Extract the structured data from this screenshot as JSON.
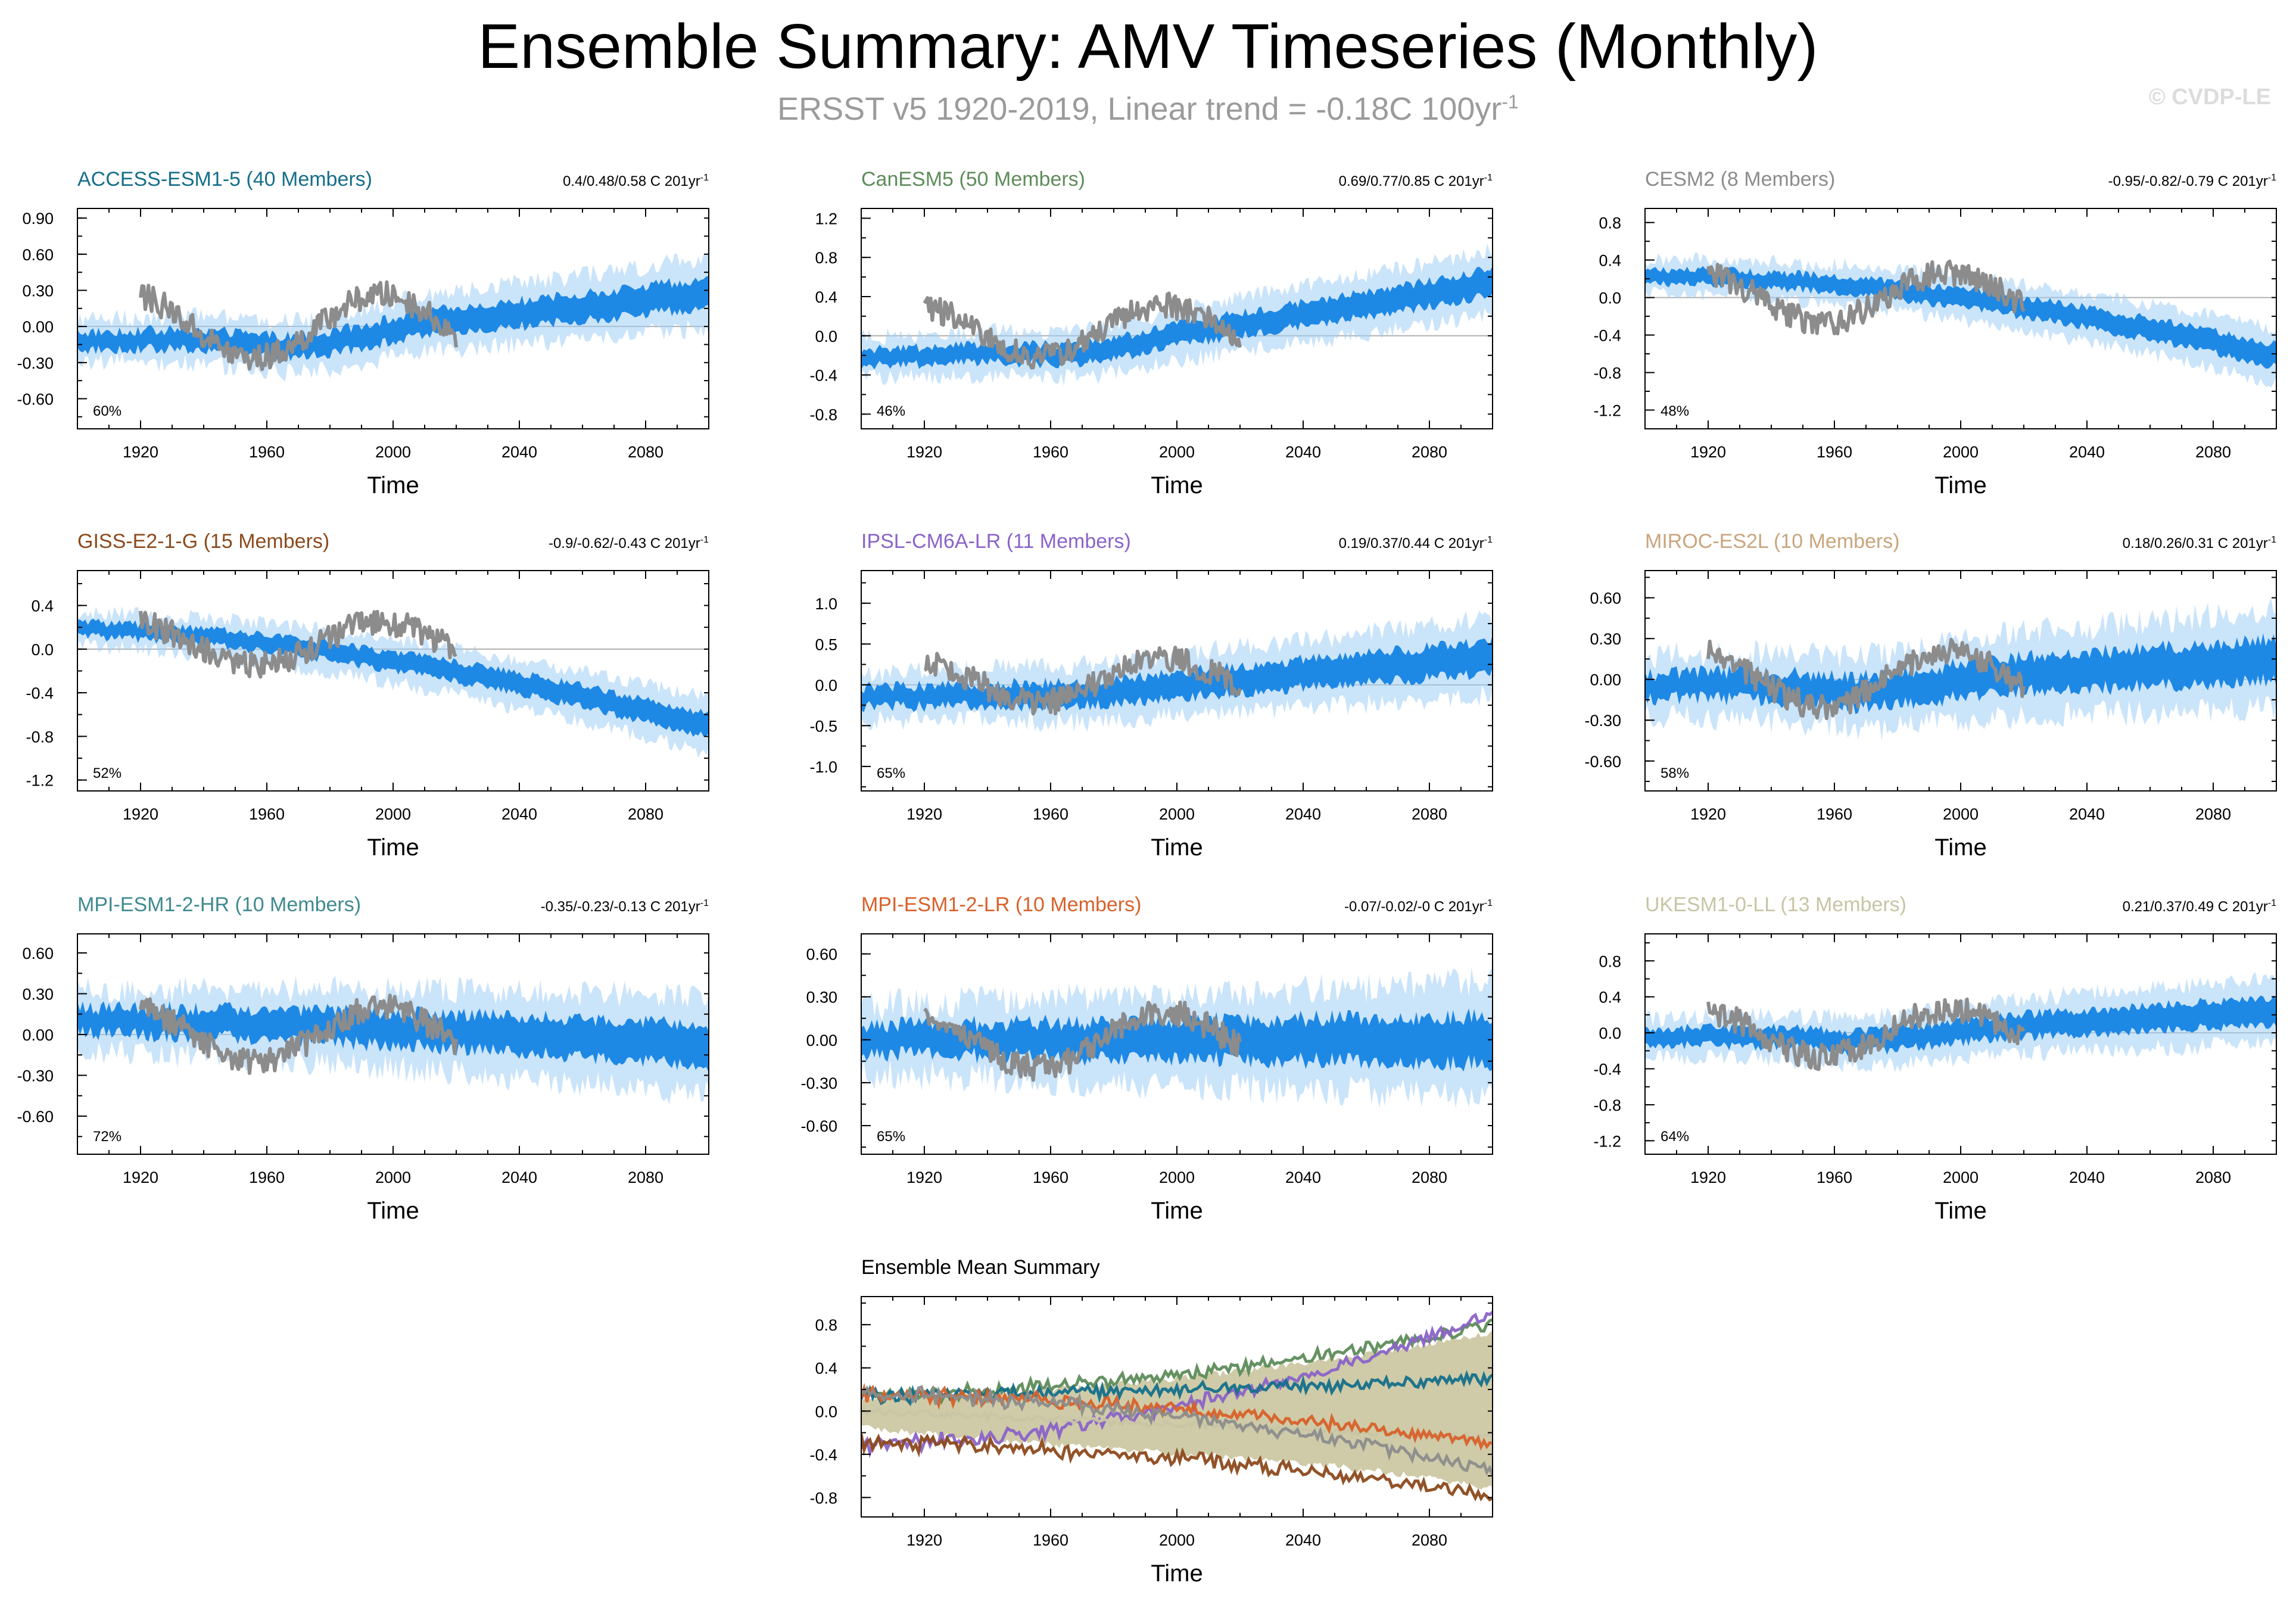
{
  "figure": {
    "title": "Ensemble Summary: AMV Timeseries (Monthly)",
    "subtitle_main": "ERSST v5 1920-2019, Linear trend = -0.18C 100yr",
    "subtitle_sup": "-1",
    "credit": "© CVDP-LE",
    "colors": {
      "ensemble": "#1e88e5",
      "observations": "#8c8c8c",
      "zero_line": "#b0b0b0"
    }
  },
  "chart_data": [
    {
      "type": "line",
      "model": "ACCESS-ESM1-5 (40 Members)",
      "color": "#156f8a",
      "trend": "0.4/0.48/0.58 C 201yr",
      "trend_sup": "-1",
      "pct": "60%",
      "xlabel": "Time",
      "xticks": [
        "1920",
        "1960",
        "2000",
        "2040",
        "2080"
      ],
      "xlim": [
        1900,
        2100
      ],
      "yticks": [
        "0.90",
        "0.60",
        "0.30",
        "0.00",
        "-0.30",
        "-0.60"
      ],
      "ytick_values": [
        0.9,
        0.6,
        0.3,
        0,
        -0.3,
        -0.6
      ],
      "ylim": [
        -0.85,
        0.98
      ],
      "mean_start": -0.12,
      "mean_end": 0.28,
      "spread": 0.16,
      "dip": -0.12,
      "mid_offset": 0.0,
      "obs_level": 0.0
    },
    {
      "type": "line",
      "model": "CanESM5 (50 Members)",
      "color": "#5e8c5a",
      "trend": "0.69/0.77/0.85 C 201yr",
      "trend_sup": "-1",
      "pct": "46%",
      "xlabel": "Time",
      "xticks": [
        "1920",
        "1960",
        "2000",
        "2040",
        "2080"
      ],
      "xlim": [
        1900,
        2100
      ],
      "yticks": [
        "1.2",
        "0.8",
        "0.4",
        "0.0",
        "-0.4",
        "-0.8"
      ],
      "ytick_values": [
        1.2,
        0.8,
        0.4,
        0,
        -0.4,
        -0.8
      ],
      "ylim": [
        -0.95,
        1.3
      ],
      "mean_start": -0.22,
      "mean_end": 0.55,
      "spread": 0.18,
      "dip": -0.1,
      "mid_offset": 0.0,
      "obs_level": 0.05
    },
    {
      "type": "line",
      "model": "CESM2 (8 Members)",
      "color": "#8c8c8c",
      "trend": "-0.95/-0.82/-0.79 C 201yr",
      "trend_sup": "-1",
      "pct": "48%",
      "xlabel": "Time",
      "xticks": [
        "1920",
        "1960",
        "2000",
        "2040",
        "2080"
      ],
      "xlim": [
        1900,
        2100
      ],
      "yticks": [
        "0.8",
        "0.4",
        "0.0",
        "-0.4",
        "-0.8",
        "-1.2"
      ],
      "ytick_values": [
        0.8,
        0.4,
        0,
        -0.4,
        -0.8,
        -1.2
      ],
      "ylim": [
        -1.4,
        0.95
      ],
      "mean_start": 0.22,
      "mean_end": -0.62,
      "spread": 0.16,
      "dip": 0.0,
      "mid_offset": 0.05,
      "obs_level": 0.0
    },
    {
      "type": "line",
      "model": "GISS-E2-1-G (15 Members)",
      "color": "#8c4a1c",
      "trend": "-0.9/-0.62/-0.43 C 201yr",
      "trend_sup": "-1",
      "pct": "52%",
      "xlabel": "Time",
      "xticks": [
        "1920",
        "1960",
        "2000",
        "2040",
        "2080"
      ],
      "xlim": [
        1900,
        2100
      ],
      "yticks": [
        "0.4",
        "0.0",
        "-0.4",
        "-0.8",
        "-1.2"
      ],
      "ytick_values": [
        0.4,
        0,
        -0.4,
        -0.8,
        -1.2
      ],
      "ylim": [
        -1.3,
        0.72
      ],
      "mean_start": 0.18,
      "mean_end": -0.7,
      "spread": 0.14,
      "dip": 0.0,
      "mid_offset": 0.0,
      "obs_level": 0.05
    },
    {
      "type": "line",
      "model": "IPSL-CM6A-LR (11 Members)",
      "color": "#8a63c8",
      "trend": "0.19/0.37/0.44 C 201yr",
      "trend_sup": "-1",
      "pct": "65%",
      "xlabel": "Time",
      "xticks": [
        "1920",
        "1960",
        "2000",
        "2040",
        "2080"
      ],
      "xlim": [
        1900,
        2100
      ],
      "yticks": [
        "1.0",
        "0.5",
        "0.0",
        "-0.5",
        "-1.0"
      ],
      "ytick_values": [
        1.0,
        0.5,
        0,
        -0.5,
        -1.0
      ],
      "ylim": [
        -1.3,
        1.4
      ],
      "mean_start": -0.15,
      "mean_end": 0.35,
      "spread": 0.26,
      "dip": -0.05,
      "mid_offset": 0.0,
      "obs_level": 0.05
    },
    {
      "type": "line",
      "model": "MIROC-ES2L (10 Members)",
      "color": "#c9a57d",
      "trend": "0.18/0.26/0.31 C 201yr",
      "trend_sup": "-1",
      "pct": "58%",
      "xlabel": "Time",
      "xticks": [
        "1920",
        "1960",
        "2000",
        "2040",
        "2080"
      ],
      "xlim": [
        1900,
        2100
      ],
      "yticks": [
        "0.60",
        "0.30",
        "0.00",
        "-0.30",
        "-0.60"
      ],
      "ytick_values": [
        0.6,
        0.3,
        0,
        -0.3,
        -0.6
      ],
      "ylim": [
        -0.82,
        0.8
      ],
      "mean_start": -0.05,
      "mean_end": 0.15,
      "spread": 0.2,
      "dip": -0.08,
      "mid_offset": 0.0,
      "obs_level": 0.0
    },
    {
      "type": "line",
      "model": "MPI-ESM1-2-HR (10 Members)",
      "color": "#3f8a8f",
      "trend": "-0.35/-0.23/-0.13 C 201yr",
      "trend_sup": "-1",
      "pct": "72%",
      "xlabel": "Time",
      "xticks": [
        "1920",
        "1960",
        "2000",
        "2040",
        "2080"
      ],
      "xlim": [
        1900,
        2100
      ],
      "yticks": [
        "0.60",
        "0.30",
        "0.00",
        "-0.30",
        "-0.60"
      ],
      "ytick_values": [
        0.6,
        0.3,
        0,
        -0.3,
        -0.6
      ],
      "ylim": [
        -0.88,
        0.74
      ],
      "mean_start": 0.1,
      "mean_end": -0.08,
      "spread": 0.2,
      "dip": 0.0,
      "mid_offset": 0.0,
      "obs_level": 0.0
    },
    {
      "type": "line",
      "model": "MPI-ESM1-2-LR (10 Members)",
      "color": "#d8612a",
      "trend": "-0.07/-0.02/-0 C 201yr",
      "trend_sup": "-1",
      "pct": "65%",
      "xlabel": "Time",
      "xticks": [
        "1920",
        "1960",
        "2000",
        "2040",
        "2080"
      ],
      "xlim": [
        1900,
        2100
      ],
      "yticks": [
        "0.60",
        "0.30",
        "0.00",
        "-0.30",
        "-0.60"
      ],
      "ytick_values": [
        0.6,
        0.3,
        0,
        -0.3,
        -0.6
      ],
      "ylim": [
        -0.8,
        0.74
      ],
      "mean_start": 0.0,
      "mean_end": 0.0,
      "spread": 0.22,
      "dip": 0.0,
      "mid_offset": 0.0,
      "obs_level": 0.0
    },
    {
      "type": "line",
      "model": "UKESM1-0-LL (13 Members)",
      "color": "#c8c5a5",
      "trend": "0.21/0.37/0.49 C 201yr",
      "trend_sup": "-1",
      "pct": "64%",
      "xlabel": "Time",
      "xticks": [
        "1920",
        "1960",
        "2000",
        "2040",
        "2080"
      ],
      "xlim": [
        1900,
        2100
      ],
      "yticks": [
        "0.8",
        "0.4",
        "0.0",
        "-0.4",
        "-0.8",
        "-1.2"
      ],
      "ytick_values": [
        0.8,
        0.4,
        0,
        -0.4,
        -0.8,
        -1.2
      ],
      "ylim": [
        -1.35,
        1.1
      ],
      "mean_start": -0.05,
      "mean_end": 0.25,
      "spread": 0.2,
      "dip": -0.1,
      "mid_offset": 0.0,
      "obs_level": 0.0
    },
    {
      "type": "area",
      "model": "Ensemble Mean Summary",
      "color": "#000000",
      "trend": "",
      "trend_sup": "",
      "pct": "",
      "xlabel": "Time",
      "xticks": [
        "1920",
        "1960",
        "2000",
        "2040",
        "2080"
      ],
      "xlim": [
        1900,
        2100
      ],
      "yticks": [
        "0.8",
        "0.4",
        "0.0",
        "-0.4",
        "-0.8"
      ],
      "ytick_values": [
        0.8,
        0.4,
        0,
        -0.4,
        -0.8
      ],
      "ylim": [
        -0.98,
        1.06
      ],
      "legend_colors": [
        "#5e8c5a",
        "#8a63c8",
        "#156f8a",
        "#c8c5a5",
        "#d8612a",
        "#8c4a1c",
        "#8c8c8c"
      ]
    }
  ]
}
